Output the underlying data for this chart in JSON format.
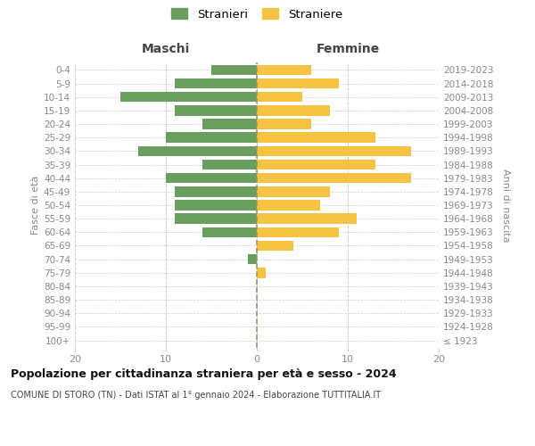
{
  "age_groups": [
    "100+",
    "95-99",
    "90-94",
    "85-89",
    "80-84",
    "75-79",
    "70-74",
    "65-69",
    "60-64",
    "55-59",
    "50-54",
    "45-49",
    "40-44",
    "35-39",
    "30-34",
    "25-29",
    "20-24",
    "15-19",
    "10-14",
    "5-9",
    "0-4"
  ],
  "birth_years": [
    "≤ 1923",
    "1924-1928",
    "1929-1933",
    "1934-1938",
    "1939-1943",
    "1944-1948",
    "1949-1953",
    "1954-1958",
    "1959-1963",
    "1964-1968",
    "1969-1973",
    "1974-1978",
    "1979-1983",
    "1984-1988",
    "1989-1993",
    "1994-1998",
    "1999-2003",
    "2004-2008",
    "2009-2013",
    "2014-2018",
    "2019-2023"
  ],
  "males": [
    0,
    0,
    0,
    0,
    0,
    0,
    1,
    0,
    6,
    9,
    9,
    9,
    10,
    6,
    13,
    10,
    6,
    9,
    15,
    9,
    5
  ],
  "females": [
    0,
    0,
    0,
    0,
    0,
    1,
    0,
    4,
    9,
    11,
    7,
    8,
    17,
    13,
    17,
    13,
    6,
    8,
    5,
    9,
    6
  ],
  "male_color": "#6a9e5e",
  "female_color": "#f5c242",
  "background_color": "#ffffff",
  "grid_color": "#cccccc",
  "center_line_color": "#999966",
  "tick_label_color": "#888888",
  "title": "Popolazione per cittadinanza straniera per età e sesso - 2024",
  "subtitle": "COMUNE DI STORO (TN) - Dati ISTAT al 1° gennaio 2024 - Elaborazione TUTTITALIA.IT",
  "xlabel_left": "Maschi",
  "xlabel_right": "Femmine",
  "ylabel_left": "Fasce di età",
  "ylabel_right": "Anni di nascita",
  "legend_male": "Stranieri",
  "legend_female": "Straniere",
  "xlim": 20,
  "bar_height": 0.75
}
